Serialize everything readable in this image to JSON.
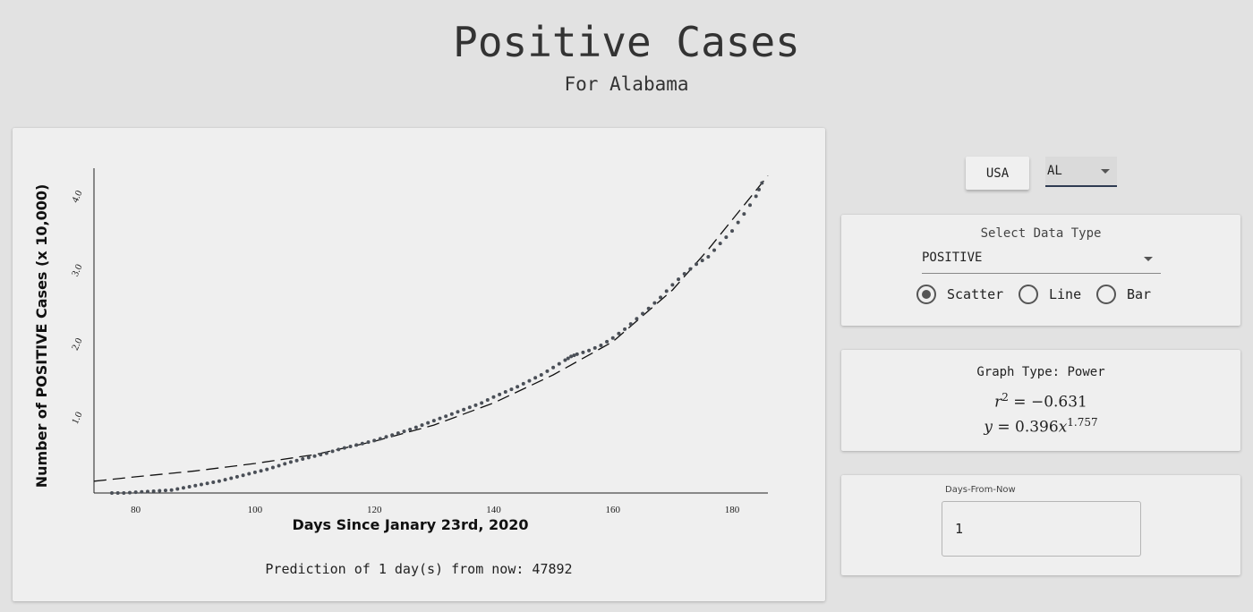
{
  "header": {
    "title": "Positive Cases",
    "subtitle": "For Alabama"
  },
  "controls": {
    "usa_button_label": "USA",
    "state_select_value": "AL"
  },
  "data_type": {
    "label": "Select Data Type",
    "selected": "POSITIVE",
    "radios": [
      {
        "label": "Scatter",
        "checked": true
      },
      {
        "label": "Line",
        "checked": false
      },
      {
        "label": "Bar",
        "checked": false
      }
    ]
  },
  "graph": {
    "type_text": "Graph Type: Power",
    "r2_lhs": "r",
    "r2_exp": "2",
    "r2_rhs": " = −0.631",
    "eq_lhs": "y",
    "eq_mid": " = 0.396",
    "eq_var": "x",
    "eq_exp": "1.757"
  },
  "days": {
    "legend": "Days-From-Now",
    "value": "1"
  },
  "prediction_text": "Prediction of 1 day(s) from now: 47892",
  "colors": {
    "background": "#e2e2e2",
    "panel": "#efefef",
    "points": "#4a4f57",
    "fit": "#111111",
    "select_underline": "#2f3b52"
  },
  "chart_data": {
    "type": "scatter",
    "xlabel": "Days Since Janary 23rd, 2020",
    "ylabel": "Number of POSITIVE Cases (x 10,000)",
    "xlim": [
      73,
      186
    ],
    "ylim": [
      0,
      4.4
    ],
    "x_ticks": [
      80,
      100,
      120,
      140,
      160,
      180
    ],
    "y_ticks": [
      "1.0",
      "2.0",
      "3.0",
      "4.0"
    ],
    "grid": false,
    "series": [
      {
        "type": "scatter",
        "x": [
          76,
          78,
          80,
          82,
          84,
          86,
          88,
          90,
          92,
          94,
          96,
          98,
          100,
          102,
          104,
          106,
          108,
          110,
          112,
          114,
          116,
          118,
          120,
          122,
          124,
          126,
          128,
          130,
          132,
          134,
          136,
          138,
          140,
          142,
          144,
          146,
          148,
          150,
          152,
          153,
          154,
          156,
          158,
          160,
          162,
          164,
          166,
          168,
          170,
          172,
          174,
          176,
          178,
          180,
          182,
          184,
          185
        ],
        "y": [
          0.0,
          0.0,
          0.01,
          0.02,
          0.03,
          0.04,
          0.07,
          0.1,
          0.13,
          0.16,
          0.2,
          0.24,
          0.28,
          0.32,
          0.37,
          0.42,
          0.46,
          0.5,
          0.54,
          0.59,
          0.63,
          0.67,
          0.71,
          0.76,
          0.81,
          0.86,
          0.92,
          0.98,
          1.04,
          1.1,
          1.16,
          1.22,
          1.3,
          1.37,
          1.44,
          1.52,
          1.6,
          1.7,
          1.8,
          1.85,
          1.88,
          1.93,
          2.0,
          2.1,
          2.22,
          2.36,
          2.5,
          2.65,
          2.82,
          2.97,
          3.1,
          3.2,
          3.38,
          3.55,
          3.78,
          4.02,
          4.2
        ]
      },
      {
        "type": "line",
        "style": "dashed",
        "x": [
          73,
          80,
          90,
          100,
          110,
          120,
          130,
          140,
          150,
          160,
          170,
          176,
          180,
          184,
          186
        ],
        "y": [
          0.16,
          0.22,
          0.3,
          0.4,
          0.52,
          0.7,
          0.92,
          1.22,
          1.6,
          2.05,
          2.75,
          3.3,
          3.7,
          4.1,
          4.3
        ]
      }
    ]
  }
}
